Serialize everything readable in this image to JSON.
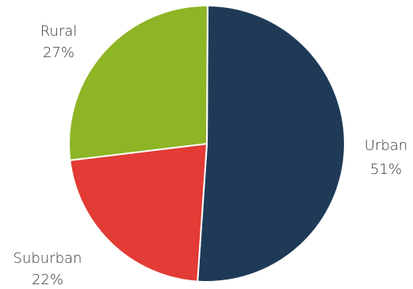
{
  "chart_data": {
    "type": "pie",
    "title": "",
    "slices": [
      {
        "label": "Urban",
        "value": 51,
        "display": "51%",
        "color": "#1f3a57"
      },
      {
        "label": "Suburban",
        "value": 22,
        "display": "22%",
        "color": "#e33b35"
      },
      {
        "label": "Rural",
        "value": 27,
        "display": "27%",
        "color": "#8db525"
      }
    ]
  }
}
